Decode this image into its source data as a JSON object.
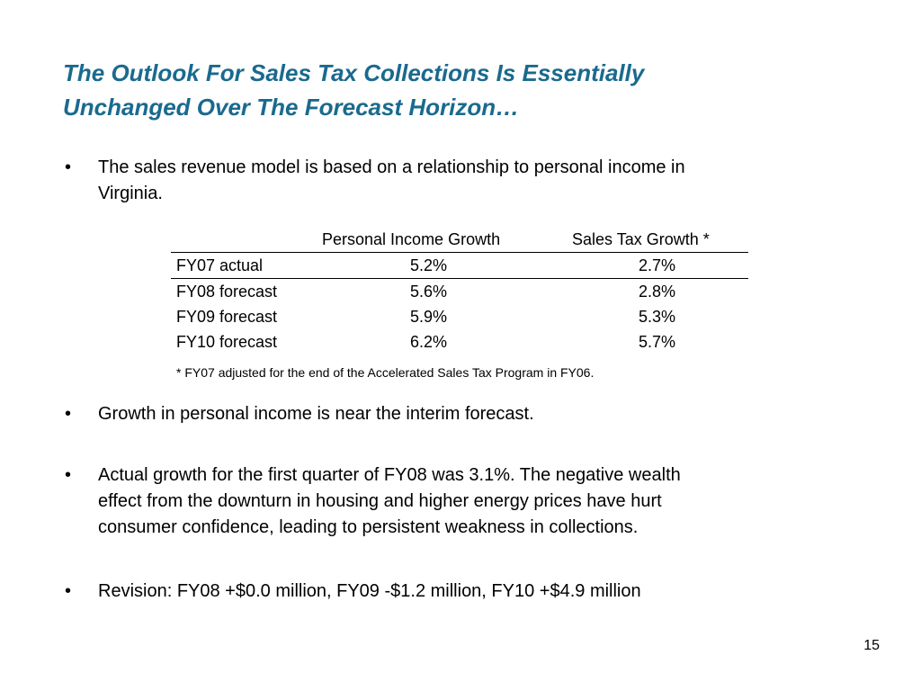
{
  "slide": {
    "title_lines": [
      "The Outlook For Sales Tax Collections Is Essentially",
      "Unchanged Over The Forecast Horizon…"
    ],
    "bullet_glyph": "•",
    "bullets": [
      {
        "lines": [
          "The sales revenue model is based on a relationship to personal income in",
          "Virginia."
        ]
      },
      {
        "lines": [
          "Growth in personal income is near the interim forecast."
        ]
      },
      {
        "lines": [
          "Actual growth for the first quarter of FY08 was 3.1%.  The negative wealth",
          "effect from the downturn in housing and higher energy prices have hurt",
          "consumer confidence, leading to persistent weakness in collections."
        ]
      },
      {
        "lines": [
          "Revision: FY08 +$0.0 million, FY09 -$1.2 million, FY10 +$4.9 million"
        ]
      }
    ],
    "table": {
      "headers": [
        "",
        "Personal Income Growth",
        "Sales Tax Growth *"
      ],
      "rows": [
        [
          "FY07 actual",
          "5.2%",
          "2.7%"
        ],
        [
          "FY08 forecast",
          "5.6%",
          "2.8%"
        ],
        [
          "FY09 forecast",
          "5.9%",
          "5.3%"
        ],
        [
          "FY10 forecast",
          "6.2%",
          "5.7%"
        ]
      ]
    },
    "footnote": "* FY07 adjusted for the end of the Accelerated Sales Tax Program in FY06.",
    "page_number": "15",
    "colors": {
      "title": "#1a6a8e",
      "text": "#000000",
      "background": "#ffffff"
    }
  }
}
